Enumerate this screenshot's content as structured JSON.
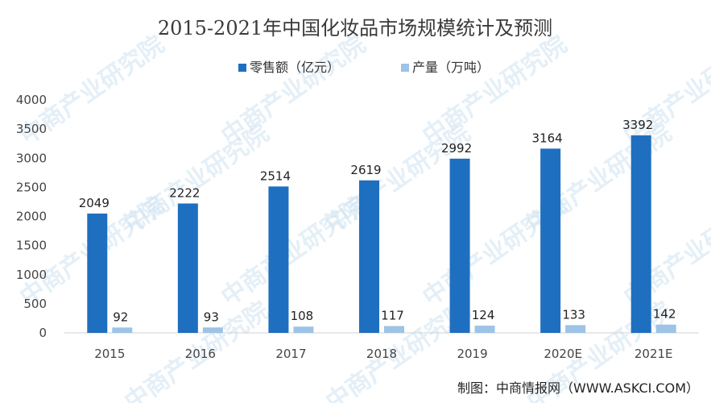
{
  "chart_data": {
    "type": "bar",
    "title": "2015-2021年中国化妆品市场规模统计及预测",
    "categories": [
      "2015",
      "2016",
      "2017",
      "2018",
      "2019",
      "2020E",
      "2021E"
    ],
    "series": [
      {
        "name": "零售额（亿元）",
        "values": [
          2049,
          2222,
          2514,
          2619,
          2992,
          3164,
          3392
        ],
        "color": "#1f6fc0"
      },
      {
        "name": "产量（万吨）",
        "values": [
          92,
          93,
          108,
          117,
          124,
          133,
          142
        ],
        "color": "#9dc3e6"
      }
    ],
    "ylim": [
      0,
      4000
    ],
    "yticks": [
      0,
      500,
      1000,
      1500,
      2000,
      2500,
      3000,
      3500,
      4000
    ],
    "legend_position": "top-center",
    "grid": false
  },
  "source_credit": "制图：中商情报网（WWW.ASKCI.COM）",
  "watermark": "中商产业研究院"
}
